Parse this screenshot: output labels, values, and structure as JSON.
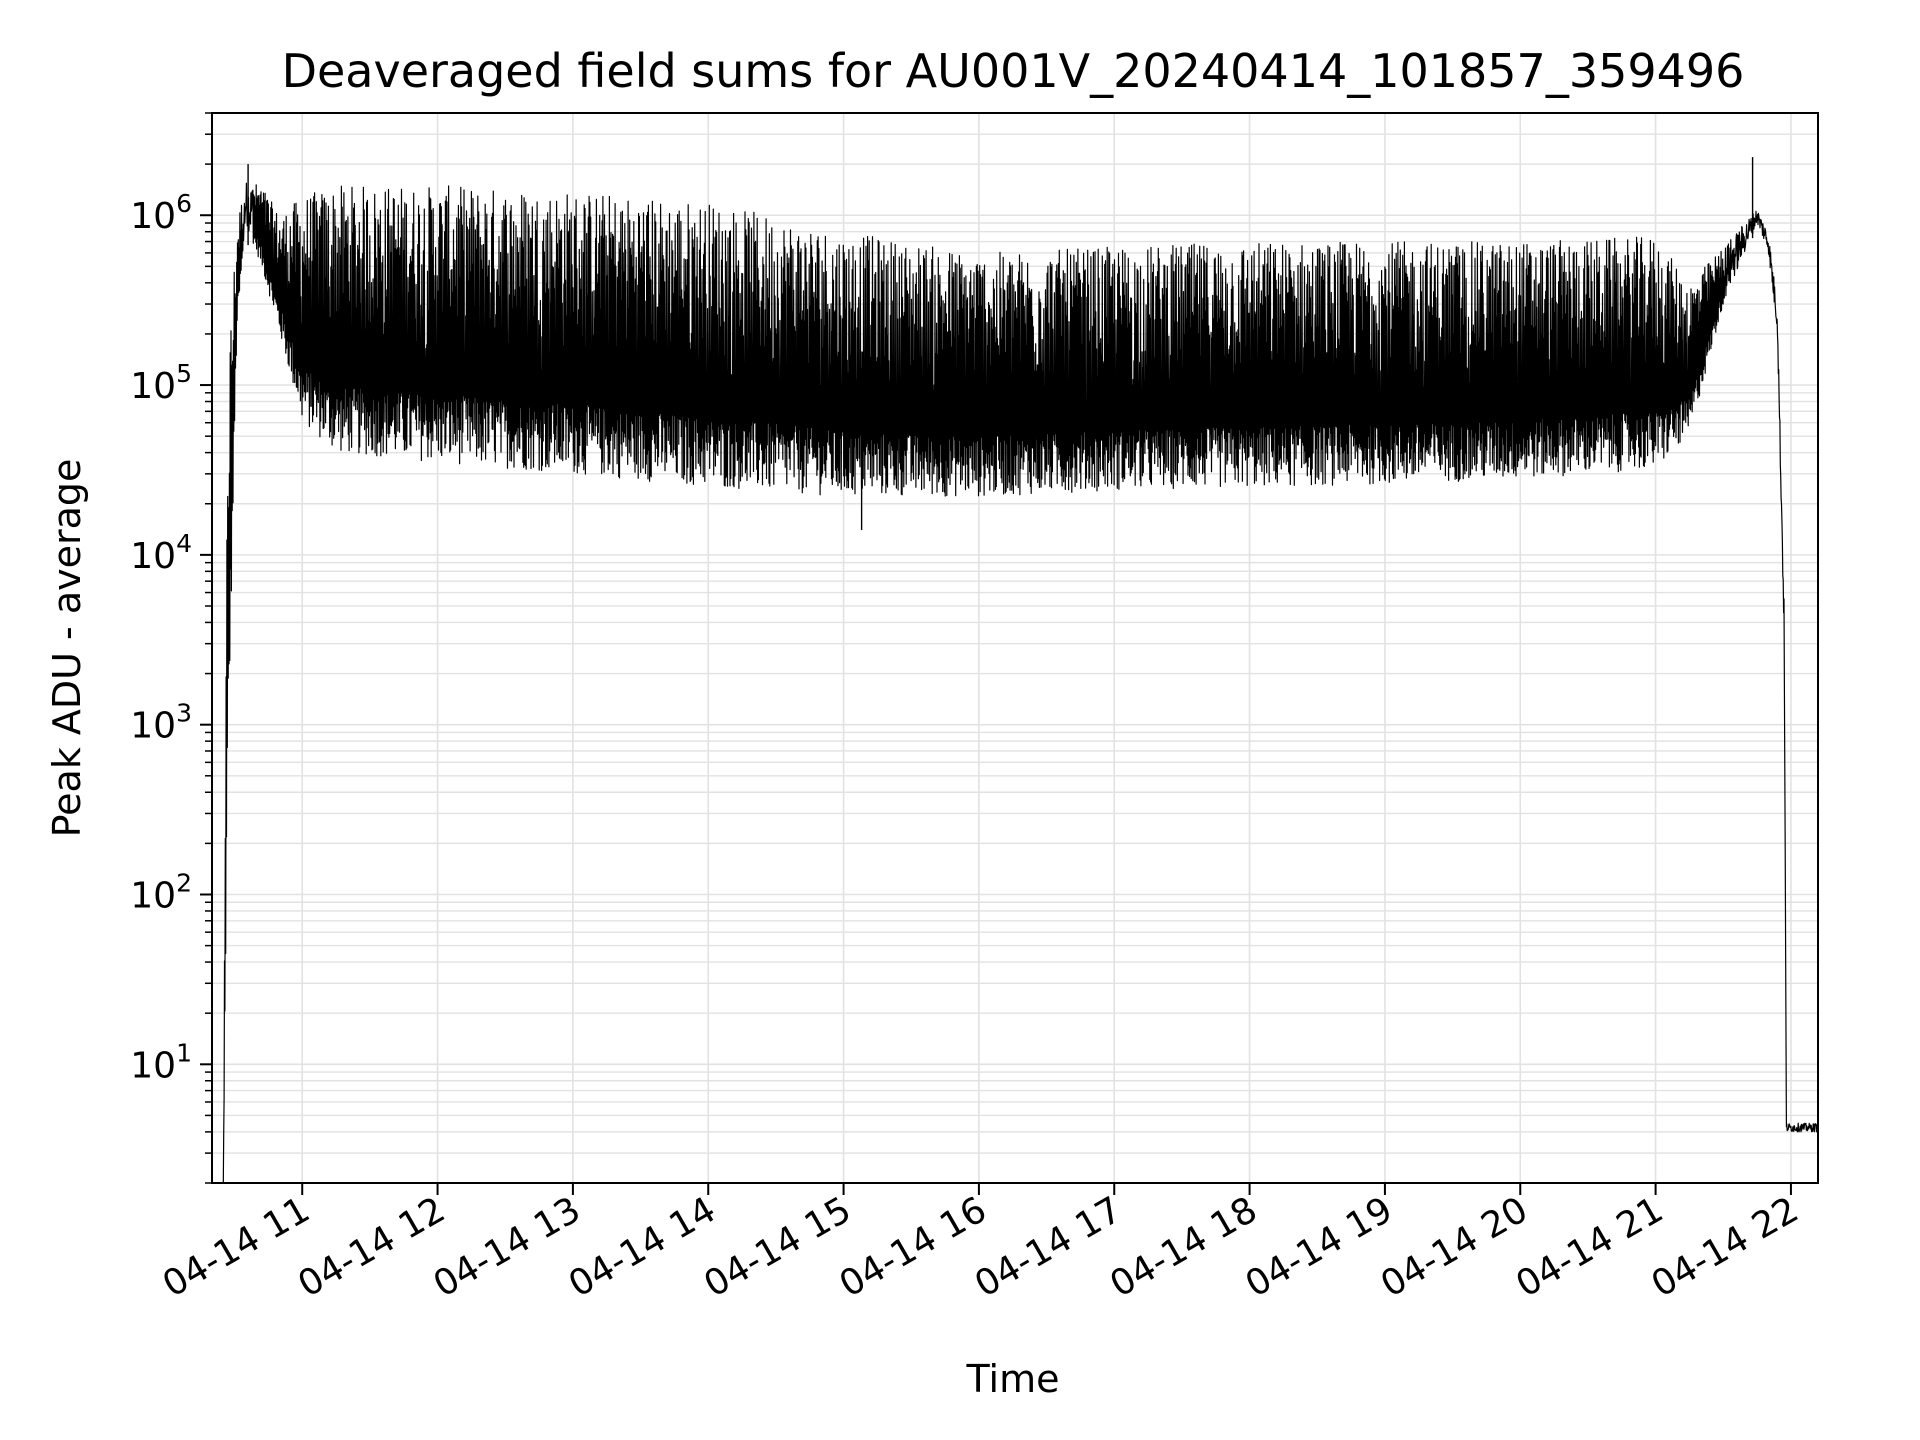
{
  "chart_data": {
    "type": "line",
    "title": "Deaveraged field sums for AU001V_20240414_101857_359496",
    "xlabel": "Time",
    "ylabel": "Peak ADU - average",
    "yscale": "log",
    "ylim": [
      2,
      4000000
    ],
    "xlim": [
      "2024-04-14 10:20",
      "2024-04-14 22:12"
    ],
    "grid": true,
    "line_color": "#000000",
    "grid_color": "#e2e2e2",
    "x_ticks": [
      {
        "time": "2024-04-14 11:00",
        "label": "04-14 11"
      },
      {
        "time": "2024-04-14 12:00",
        "label": "04-14 12"
      },
      {
        "time": "2024-04-14 13:00",
        "label": "04-14 13"
      },
      {
        "time": "2024-04-14 14:00",
        "label": "04-14 14"
      },
      {
        "time": "2024-04-14 15:00",
        "label": "04-14 15"
      },
      {
        "time": "2024-04-14 16:00",
        "label": "04-14 16"
      },
      {
        "time": "2024-04-14 17:00",
        "label": "04-14 17"
      },
      {
        "time": "2024-04-14 18:00",
        "label": "04-14 18"
      },
      {
        "time": "2024-04-14 19:00",
        "label": "04-14 19"
      },
      {
        "time": "2024-04-14 20:00",
        "label": "04-14 20"
      },
      {
        "time": "2024-04-14 21:00",
        "label": "04-14 21"
      },
      {
        "time": "2024-04-14 22:00",
        "label": "04-14 22"
      }
    ],
    "y_ticks": [
      {
        "value": 10,
        "base": "10",
        "exp": "1"
      },
      {
        "value": 100,
        "base": "10",
        "exp": "2"
      },
      {
        "value": 1000,
        "base": "10",
        "exp": "3"
      },
      {
        "value": 10000,
        "base": "10",
        "exp": "4"
      },
      {
        "value": 100000,
        "base": "10",
        "exp": "5"
      },
      {
        "value": 1000000,
        "base": "10",
        "exp": "6"
      }
    ],
    "series": [
      {
        "envelope": [
          {
            "time": "2024-04-14 10:25",
            "upper": 2,
            "lower": 2
          },
          {
            "time": "2024-04-14 10:27",
            "upper": 140000,
            "lower": 500
          },
          {
            "time": "2024-04-14 10:31",
            "upper": 900000,
            "lower": 200000
          },
          {
            "time": "2024-04-14 10:35",
            "upper": 1600000,
            "lower": 900000
          },
          {
            "time": "2024-04-14 10:42",
            "upper": 1500000,
            "lower": 500000
          },
          {
            "time": "2024-04-14 10:50",
            "upper": 1000000,
            "lower": 200000
          },
          {
            "time": "2024-04-14 11:00",
            "upper": 1300000,
            "lower": 60000
          },
          {
            "time": "2024-04-14 11:15",
            "upper": 1500000,
            "lower": 40000
          },
          {
            "time": "2024-04-14 12:00",
            "upper": 1500000,
            "lower": 35000
          },
          {
            "time": "2024-04-14 13:00",
            "upper": 1400000,
            "lower": 30000
          },
          {
            "time": "2024-04-14 14:00",
            "upper": 1200000,
            "lower": 25000
          },
          {
            "time": "2024-04-14 15:00",
            "upper": 800000,
            "lower": 22000
          },
          {
            "time": "2024-04-14 16:00",
            "upper": 600000,
            "lower": 22000
          },
          {
            "time": "2024-04-14 17:00",
            "upper": 650000,
            "lower": 24000
          },
          {
            "time": "2024-04-14 18:00",
            "upper": 700000,
            "lower": 25000
          },
          {
            "time": "2024-04-14 19:00",
            "upper": 700000,
            "lower": 26000
          },
          {
            "time": "2024-04-14 20:00",
            "upper": 700000,
            "lower": 28000
          },
          {
            "time": "2024-04-14 21:00",
            "upper": 750000,
            "lower": 32000
          },
          {
            "time": "2024-04-14 21:15",
            "upper": 400000,
            "lower": 50000
          },
          {
            "time": "2024-04-14 21:30",
            "upper": 650000,
            "lower": 300000
          },
          {
            "time": "2024-04-14 21:45",
            "upper": 1100000,
            "lower": 900000
          },
          {
            "time": "2024-04-14 21:50",
            "upper": 800000,
            "lower": 600000
          },
          {
            "time": "2024-04-14 21:54",
            "upper": 300000,
            "lower": 200000
          },
          {
            "time": "2024-04-14 21:57",
            "upper": 5000,
            "lower": 3000
          },
          {
            "time": "2024-04-14 21:58",
            "upper": 4.5,
            "lower": 4
          },
          {
            "time": "2024-04-14 22:12",
            "upper": 4.5,
            "lower": 4
          }
        ],
        "peaks": [
          {
            "time": "2024-04-14 10:36",
            "value": 2000000
          },
          {
            "time": "2024-04-14 21:43",
            "value": 2200000
          }
        ],
        "minimum": {
          "time": "2024-04-14 15:08",
          "value": 14000
        }
      }
    ]
  }
}
